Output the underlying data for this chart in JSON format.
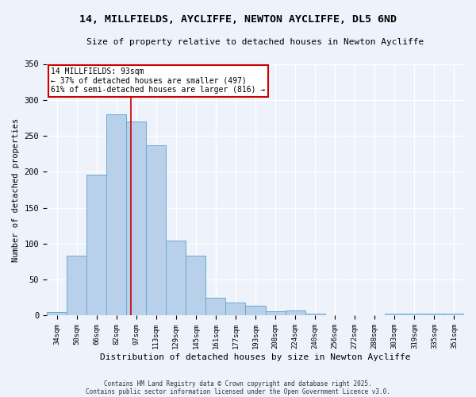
{
  "title_line1": "14, MILLFIELDS, AYCLIFFE, NEWTON AYCLIFFE, DL5 6ND",
  "title_line2": "Size of property relative to detached houses in Newton Aycliffe",
  "xlabel": "Distribution of detached houses by size in Newton Aycliffe",
  "ylabel": "Number of detached properties",
  "bar_labels": [
    "34sqm",
    "50sqm",
    "66sqm",
    "82sqm",
    "97sqm",
    "113sqm",
    "129sqm",
    "145sqm",
    "161sqm",
    "177sqm",
    "193sqm",
    "208sqm",
    "224sqm",
    "240sqm",
    "256sqm",
    "272sqm",
    "288sqm",
    "303sqm",
    "319sqm",
    "335sqm",
    "351sqm"
  ],
  "bar_values": [
    5,
    83,
    196,
    280,
    270,
    237,
    104,
    83,
    25,
    18,
    14,
    6,
    7,
    3,
    1,
    1,
    0,
    3,
    3,
    3,
    3
  ],
  "bar_color": "#b8d0ea",
  "bar_edge_color": "#6aaad4",
  "bg_color": "#eef2fb",
  "grid_color": "#ffffff",
  "redline_x": 3.75,
  "annotation_text": "14 MILLFIELDS: 93sqm\n← 37% of detached houses are smaller (497)\n61% of semi-detached houses are larger (816) →",
  "annotation_box_color": "#ffffff",
  "annotation_box_edge": "#cc0000",
  "redline_color": "#cc0000",
  "ylim": [
    0,
    350
  ],
  "yticks": [
    0,
    50,
    100,
    150,
    200,
    250,
    300,
    350
  ],
  "footer1": "Contains HM Land Registry data © Crown copyright and database right 2025.",
  "footer2": "Contains public sector information licensed under the Open Government Licence v3.0."
}
